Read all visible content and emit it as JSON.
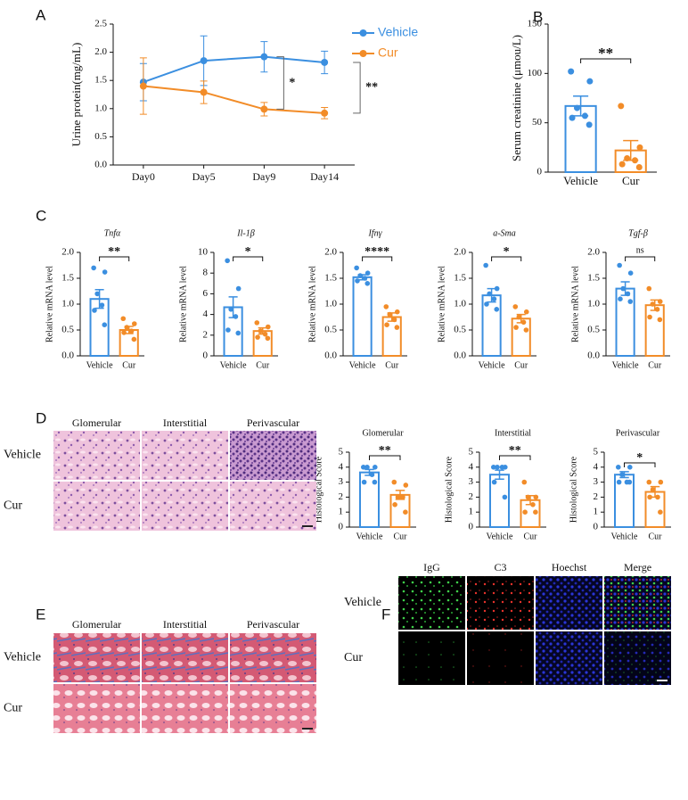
{
  "chart_data": [
    {
      "type": "line",
      "ylabel": "Urine protein(mg/mL)",
      "categories": [
        "Day0",
        "Day5",
        "Day9",
        "Day14"
      ],
      "series": [
        {
          "name": "Vehicle",
          "color": "#3b8fe0",
          "values": [
            1.47,
            1.85,
            1.92,
            1.82
          ],
          "errors": [
            0.33,
            0.44,
            0.27,
            0.2
          ]
        },
        {
          "name": "Cur",
          "color": "#f28c28",
          "values": [
            1.4,
            1.29,
            0.99,
            0.92
          ],
          "errors": [
            0.5,
            0.2,
            0.12,
            0.1
          ]
        }
      ],
      "ylim": [
        0,
        2.5
      ],
      "yticks": [
        {
          "value": 0,
          "label": "0.0"
        },
        0.5,
        {
          "value": 1,
          "label": "1.0"
        },
        1.5,
        {
          "value": 2,
          "label": "2.0"
        },
        2.5
      ],
      "annotations": [
        "*",
        "**"
      ]
    },
    {
      "type": "bar",
      "ylabel": "Serum creatinine (μmou/L)",
      "categories": [
        "Vehicle",
        "Cur"
      ],
      "colors": [
        "#3b8fe0",
        "#f28c28"
      ],
      "values": [
        67,
        22
      ],
      "errors": [
        10,
        10
      ],
      "points": [
        [
          102,
          92,
          65,
          57,
          55,
          48
        ],
        [
          67,
          25,
          14,
          12,
          8,
          5
        ]
      ],
      "ylim": [
        0,
        150
      ],
      "yticks": [
        0,
        50,
        100,
        150
      ],
      "annotation": "**"
    },
    {
      "type": "bar",
      "title": "Tnfα",
      "ylabel": "Relative mRNA level",
      "categories": [
        "Vehicle",
        "Cur"
      ],
      "colors": [
        "#3b8fe0",
        "#f28c28"
      ],
      "values": [
        1.1,
        0.5
      ],
      "errors": [
        0.18,
        0.07
      ],
      "points": [
        [
          1.7,
          1.62,
          1.2,
          0.98,
          0.88,
          0.6
        ],
        [
          0.72,
          0.62,
          0.55,
          0.48,
          0.45,
          0.32
        ]
      ],
      "ylim": [
        0,
        2
      ],
      "yticks": [
        {
          "value": 0,
          "label": "0.0"
        },
        0.5,
        {
          "value": 1,
          "label": "1.0"
        },
        1.5,
        {
          "value": 2,
          "label": "2.0"
        }
      ],
      "annotation": "**"
    },
    {
      "type": "bar",
      "title": "Il-1β",
      "ylabel": "Relative mRNA level",
      "categories": [
        "Vehicle",
        "Cur"
      ],
      "colors": [
        "#3b8fe0",
        "#f28c28"
      ],
      "values": [
        4.7,
        2.4
      ],
      "errors": [
        1.0,
        0.3
      ],
      "points": [
        [
          9.2,
          6.5,
          4.5,
          3.8,
          2.5,
          2.2
        ],
        [
          3.2,
          2.8,
          2.4,
          2.1,
          1.8,
          1.7
        ]
      ],
      "ylim": [
        0,
        10
      ],
      "yticks": [
        0,
        2,
        4,
        6,
        8,
        10
      ],
      "annotation": "*"
    },
    {
      "type": "bar",
      "title": "Ifnγ",
      "ylabel": "Relative mRNA level",
      "categories": [
        "Vehicle",
        "Cur"
      ],
      "colors": [
        "#3b8fe0",
        "#f28c28"
      ],
      "values": [
        1.52,
        0.75
      ],
      "errors": [
        0.05,
        0.08
      ],
      "points": [
        [
          1.7,
          1.6,
          1.55,
          1.5,
          1.45,
          1.4
        ],
        [
          0.95,
          0.85,
          0.8,
          0.7,
          0.6,
          0.55
        ]
      ],
      "ylim": [
        0,
        2
      ],
      "yticks": [
        {
          "value": 0,
          "label": "0.0"
        },
        0.5,
        {
          "value": 1,
          "label": "1.0"
        },
        1.5,
        {
          "value": 2,
          "label": "2.0"
        }
      ],
      "annotation": "****"
    },
    {
      "type": "bar",
      "title": "a-Sma",
      "ylabel": "Relative mRNA level",
      "categories": [
        "Vehicle",
        "Cur"
      ],
      "colors": [
        "#3b8fe0",
        "#f28c28"
      ],
      "values": [
        1.17,
        0.72
      ],
      "errors": [
        0.13,
        0.08
      ],
      "points": [
        [
          1.75,
          1.3,
          1.2,
          1.1,
          1.0,
          0.9
        ],
        [
          0.95,
          0.85,
          0.75,
          0.65,
          0.55,
          0.5
        ]
      ],
      "ylim": [
        0,
        2
      ],
      "yticks": [
        {
          "value": 0,
          "label": "0.0"
        },
        0.5,
        {
          "value": 1,
          "label": "1.0"
        },
        1.5,
        {
          "value": 2,
          "label": "2.0"
        }
      ],
      "annotation": "*"
    },
    {
      "type": "bar",
      "title": "Tgf-β",
      "ylabel": "Relative mRNA level",
      "categories": [
        "Vehicle",
        "Cur"
      ],
      "colors": [
        "#3b8fe0",
        "#f28c28"
      ],
      "values": [
        1.3,
        0.98
      ],
      "errors": [
        0.13,
        0.1
      ],
      "points": [
        [
          1.75,
          1.6,
          1.3,
          1.2,
          1.1,
          1.05
        ],
        [
          1.3,
          1.05,
          1.0,
          0.9,
          0.75,
          0.7
        ]
      ],
      "ylim": [
        0,
        2
      ],
      "yticks": [
        {
          "value": 0,
          "label": "0.0"
        },
        0.5,
        {
          "value": 1,
          "label": "1.0"
        },
        1.5,
        {
          "value": 2,
          "label": "2.0"
        }
      ],
      "annotation": "ns"
    },
    {
      "type": "bar",
      "title": "Glomerular",
      "ylabel": "Histological Score",
      "categories": [
        "Vehicle",
        "Cur"
      ],
      "colors": [
        "#3b8fe0",
        "#f28c28"
      ],
      "values": [
        3.65,
        2.15
      ],
      "errors": [
        0.2,
        0.3
      ],
      "points": [
        [
          4,
          4,
          4,
          3.5,
          3,
          3
        ],
        [
          3,
          2.8,
          2,
          2,
          1.5,
          1
        ]
      ],
      "ylim": [
        0,
        5
      ],
      "yticks": [
        0,
        1,
        2,
        3,
        4,
        5
      ],
      "annotation": "**"
    },
    {
      "type": "bar",
      "title": "Interstitial",
      "ylabel": "Histological Score",
      "categories": [
        "Vehicle",
        "Cur"
      ],
      "colors": [
        "#3b8fe0",
        "#f28c28"
      ],
      "values": [
        3.5,
        1.8
      ],
      "errors": [
        0.3,
        0.3
      ],
      "points": [
        [
          4,
          4,
          4,
          4,
          3,
          2
        ],
        [
          3,
          2,
          2,
          1.5,
          1,
          1
        ]
      ],
      "ylim": [
        0,
        5
      ],
      "yticks": [
        0,
        1,
        2,
        3,
        4,
        5
      ],
      "annotation": "**"
    },
    {
      "type": "bar",
      "title": "Perivascular",
      "ylabel": "Histological Score",
      "categories": [
        "Vehicle",
        "Cur"
      ],
      "colors": [
        "#3b8fe0",
        "#f28c28"
      ],
      "values": [
        3.5,
        2.35
      ],
      "errors": [
        0.2,
        0.35
      ],
      "points": [
        [
          4,
          4,
          3.5,
          3,
          3,
          3
        ],
        [
          3,
          3,
          2.5,
          2,
          2,
          1
        ]
      ],
      "ylim": [
        0,
        5
      ],
      "yticks": [
        0,
        1,
        2,
        3,
        4,
        5
      ],
      "annotation": "*"
    }
  ],
  "figure": {
    "panel_labels": [
      "A",
      "B",
      "C",
      "D",
      "E",
      "F"
    ],
    "he": {
      "columns": [
        "Glomerular",
        "Interstitial",
        "Perivascular"
      ],
      "rows": [
        "Vehicle",
        "Cur"
      ]
    },
    "masson": {
      "columns": [
        "Glomerular",
        "Interstitial",
        "Perivascular"
      ],
      "rows": [
        "Vehicle",
        "Cur"
      ]
    },
    "immunofluorescence": {
      "columns": [
        "IgG",
        "C3",
        "Hoechst",
        "Merge"
      ],
      "rows": [
        "Vehicle",
        "Cur"
      ]
    }
  }
}
